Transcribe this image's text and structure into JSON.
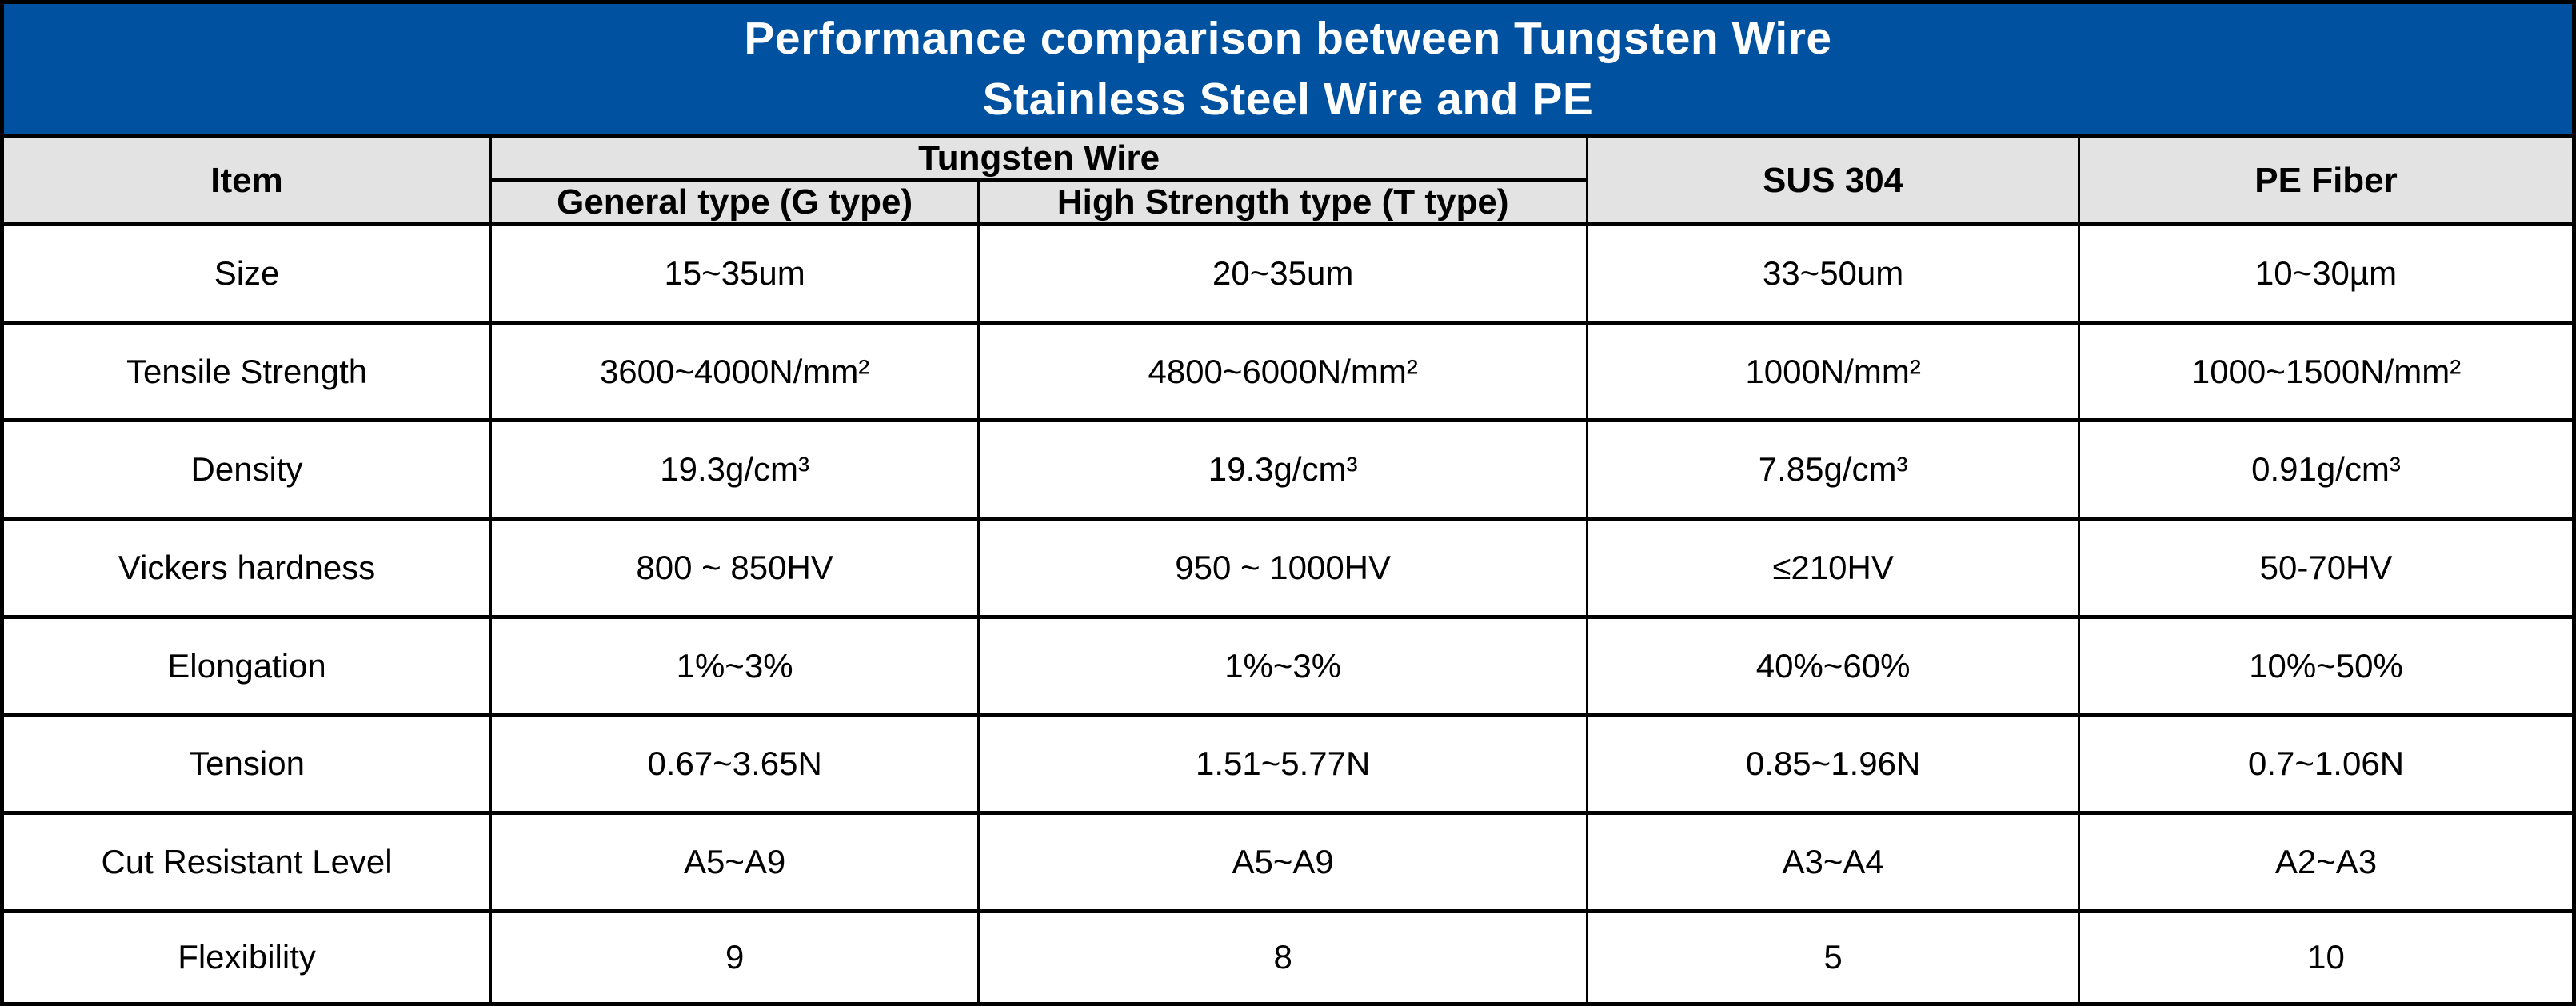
{
  "chart_data": {
    "type": "table",
    "title_lines": [
      "Performance comparison between Tungsten Wire",
      "Stainless Steel Wire and PE"
    ],
    "header": {
      "item": "Item",
      "tungsten_group": "Tungsten Wire",
      "subtypes": [
        "General type (G type)",
        "High Strength type (T type)"
      ],
      "sus": "SUS 304",
      "pe": "PE Fiber"
    },
    "row_keys": [
      "item",
      "g_type",
      "t_type",
      "sus304",
      "pe_fiber"
    ],
    "rows": [
      {
        "item": "Size",
        "g_type": "15~35um",
        "t_type": "20~35um",
        "sus304": "33~50um",
        "pe_fiber": "10~30µm"
      },
      {
        "item": "Tensile Strength",
        "g_type": "3600~4000N/mm²",
        "t_type": "4800~6000N/mm²",
        "sus304": "1000N/mm²",
        "pe_fiber": "1000~1500N/mm²"
      },
      {
        "item": "Density",
        "g_type": "19.3g/cm³",
        "t_type": "19.3g/cm³",
        "sus304": "7.85g/cm³",
        "pe_fiber": "0.91g/cm³"
      },
      {
        "item": "Vickers hardness",
        "g_type": "800 ~ 850HV",
        "t_type": "950 ~ 1000HV",
        "sus304": "≤210HV",
        "pe_fiber": "50-70HV"
      },
      {
        "item": "Elongation",
        "g_type": "1%~3%",
        "t_type": "1%~3%",
        "sus304": "40%~60%",
        "pe_fiber": "10%~50%"
      },
      {
        "item": "Tension",
        "g_type": "0.67~3.65N",
        "t_type": "1.51~5.77N",
        "sus304": "0.85~1.96N",
        "pe_fiber": "0.7~1.06N"
      },
      {
        "item": "Cut Resistant Level",
        "g_type": "A5~A9",
        "t_type": "A5~A9",
        "sus304": "A3~A4",
        "pe_fiber": "A2~A3"
      },
      {
        "item": "Flexibility",
        "g_type": "9",
        "t_type": "8",
        "sus304": "5",
        "pe_fiber": "10"
      }
    ]
  },
  "colors": {
    "title_bg": "#00519F",
    "title_text": "#FFFFFF",
    "header_bg": "#E3E3E3",
    "border": "#000000",
    "cell_bg": "#FFFFFF"
  }
}
